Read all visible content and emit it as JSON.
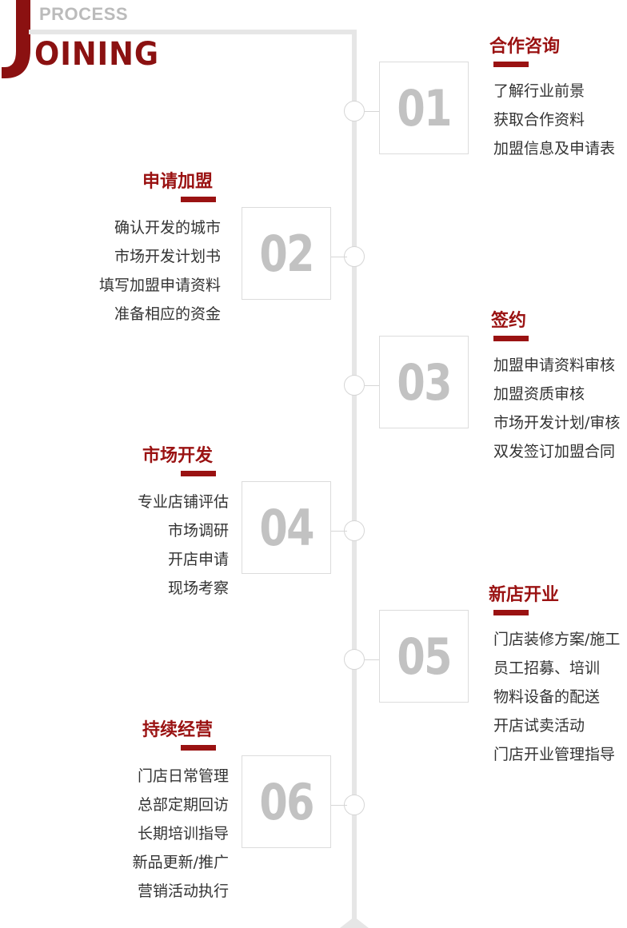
{
  "logo": {
    "small": "PROCESS",
    "big_letter": "J",
    "big_rest": "OINING"
  },
  "colors": {
    "accent": "#9a1212",
    "line": "#e6e6e6",
    "number": "#c2c2c2"
  },
  "steps": [
    {
      "number": "01",
      "title": "合作咨询",
      "items": [
        "了解行业前景",
        "获取合作资料",
        "加盟信息及申请表"
      ]
    },
    {
      "number": "02",
      "title": "申请加盟",
      "items": [
        "确认开发的城市",
        "市场开发计划书",
        "填写加盟申请资料",
        "准备相应的资金"
      ]
    },
    {
      "number": "03",
      "title": "签约",
      "items": [
        "加盟申请资料审核",
        "加盟资质审核",
        "市场开发计划/审核",
        "双发签订加盟合同"
      ]
    },
    {
      "number": "04",
      "title": "市场开发",
      "items": [
        "专业店铺评估",
        "市场调研",
        "开店申请",
        "现场考察"
      ]
    },
    {
      "number": "05",
      "title": "新店开业",
      "items": [
        "门店装修方案/施工",
        "员工招募、培训",
        "物料设备的配送",
        "开店试卖活动",
        "门店开业管理指导"
      ]
    },
    {
      "number": "06",
      "title": "持续经营",
      "items": [
        "门店日常管理",
        "总部定期回访",
        "长期培训指导",
        "新品更新/推广",
        "营销活动执行"
      ]
    }
  ]
}
